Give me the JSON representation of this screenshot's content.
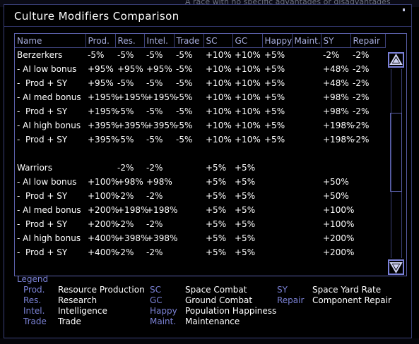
{
  "background": {
    "text": "A race with no specific advantages or disadvantages"
  },
  "window": {
    "title": "Culture Modifiers Comparison"
  },
  "table": {
    "columns": [
      "Name",
      "Prod.",
      "Res.",
      "Intel.",
      "Trade",
      "SC",
      "GC",
      "Happy",
      "Maint.",
      "SY",
      "Repair"
    ],
    "rows": [
      [
        "Berzerkers",
        "-5%",
        "-5%",
        "-5%",
        "-5%",
        "+10%",
        "+10%",
        "+5%",
        "",
        "-2%",
        "-2%"
      ],
      [
        "- AI low bonus",
        "+95%",
        "+95%",
        "+95%",
        "-5%",
        "+10%",
        "+10%",
        "+5%",
        "",
        "+48%",
        "-2%"
      ],
      [
        "-  Prod + SY",
        "+95%",
        "-5%",
        "-5%",
        "-5%",
        "+10%",
        "+10%",
        "+5%",
        "",
        "+48%",
        "-2%"
      ],
      [
        "- AI med bonus",
        "+195%",
        "+195%",
        "+195%",
        "-5%",
        "+10%",
        "+10%",
        "+5%",
        "",
        "+98%",
        "-2%"
      ],
      [
        "-  Prod + SY",
        "+195%",
        "-5%",
        "-5%",
        "-5%",
        "+10%",
        "+10%",
        "+5%",
        "",
        "+98%",
        "-2%"
      ],
      [
        "- AI high bonus",
        "+395%",
        "+395%",
        "+395%",
        "-5%",
        "+10%",
        "+10%",
        "+5%",
        "",
        "+198%",
        "-2%"
      ],
      [
        "-  Prod + SY",
        "+395%",
        "-5%",
        "-5%",
        "-5%",
        "+10%",
        "+10%",
        "+5%",
        "",
        "+198%",
        "-2%"
      ],
      [
        "",
        "",
        "",
        "",
        "",
        "",
        "",
        "",
        "",
        "",
        ""
      ],
      [
        "Warriors",
        "",
        "-2%",
        "-2%",
        "",
        "+5%",
        "+5%",
        "",
        "",
        "",
        ""
      ],
      [
        "- AI low bonus",
        "+100%",
        "+98%",
        "+98%",
        "",
        "+5%",
        "+5%",
        "",
        "",
        "+50%",
        ""
      ],
      [
        "-  Prod + SY",
        "+100%",
        "-2%",
        "-2%",
        "",
        "+5%",
        "+5%",
        "",
        "",
        "+50%",
        ""
      ],
      [
        "- AI med bonus",
        "+200%",
        "+198%",
        "+198%",
        "",
        "+5%",
        "+5%",
        "",
        "",
        "+100%",
        ""
      ],
      [
        "-  Prod + SY",
        "+200%",
        "-2%",
        "-2%",
        "",
        "+5%",
        "+5%",
        "",
        "",
        "+100%",
        ""
      ],
      [
        "- AI high bonus",
        "+400%",
        "+398%",
        "+398%",
        "",
        "+5%",
        "+5%",
        "",
        "",
        "+200%",
        ""
      ],
      [
        "-  Prod + SY",
        "+400%",
        "-2%",
        "-2%",
        "",
        "+5%",
        "+5%",
        "",
        "",
        "+200%",
        ""
      ]
    ]
  },
  "scrollbar": {
    "up_icon": "triangle-up-icon",
    "down_icon": "triangle-down-icon"
  },
  "legend": {
    "title": "Legend",
    "items": [
      {
        "abbr": "Prod.",
        "desc": "Resource Production"
      },
      {
        "abbr": "Res.",
        "desc": "Research"
      },
      {
        "abbr": "Intel.",
        "desc": "Intelligence"
      },
      {
        "abbr": "Trade",
        "desc": "Trade"
      },
      {
        "abbr": "SC",
        "desc": "Space Combat"
      },
      {
        "abbr": "GC",
        "desc": "Ground Combat"
      },
      {
        "abbr": "Happy",
        "desc": "Population Happiness"
      },
      {
        "abbr": "Maint.",
        "desc": "Maintenance"
      },
      {
        "abbr": "SY",
        "desc": "Space Yard Rate"
      },
      {
        "abbr": "Repair",
        "desc": "Component Repair"
      }
    ]
  },
  "colors": {
    "accent": "#7b82d6",
    "header_text": "#a6acdc",
    "border": "#5a5fa8",
    "background": "#000000"
  }
}
